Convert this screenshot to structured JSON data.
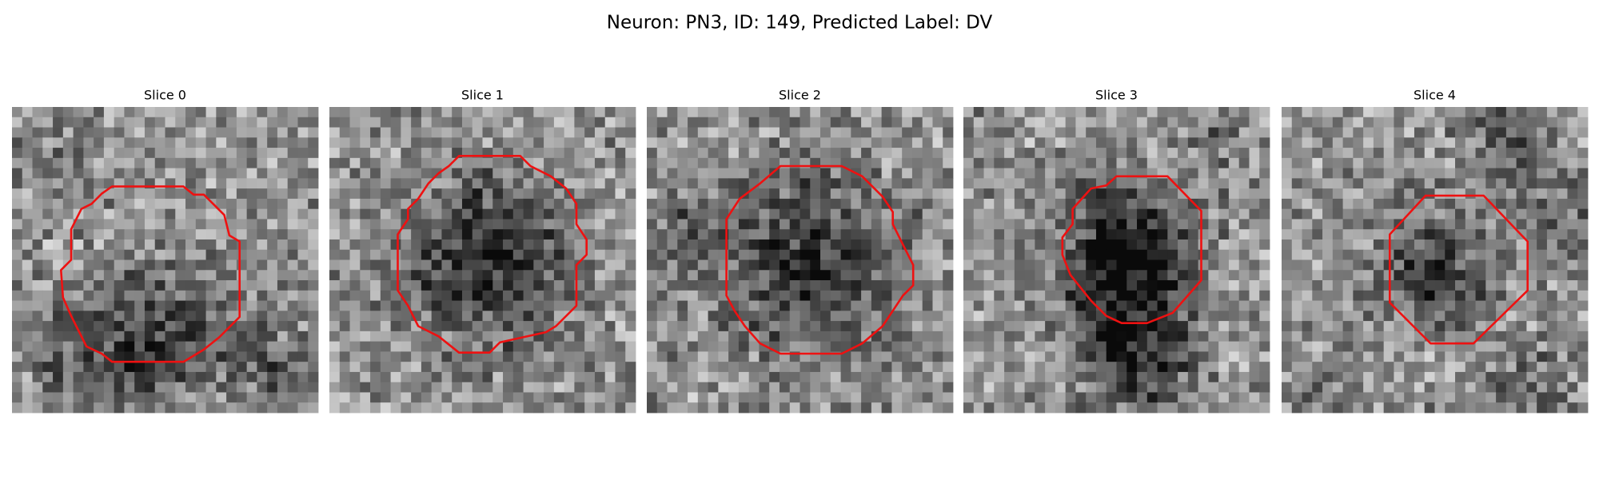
{
  "header": {
    "title": "Neuron: PN3, ID: 149, Predicted Label: DV"
  },
  "panels": [
    {
      "title": "Slice 0"
    },
    {
      "title": "Slice 1"
    },
    {
      "title": "Slice 2"
    },
    {
      "title": "Slice 3"
    },
    {
      "title": "Slice 4"
    }
  ]
}
